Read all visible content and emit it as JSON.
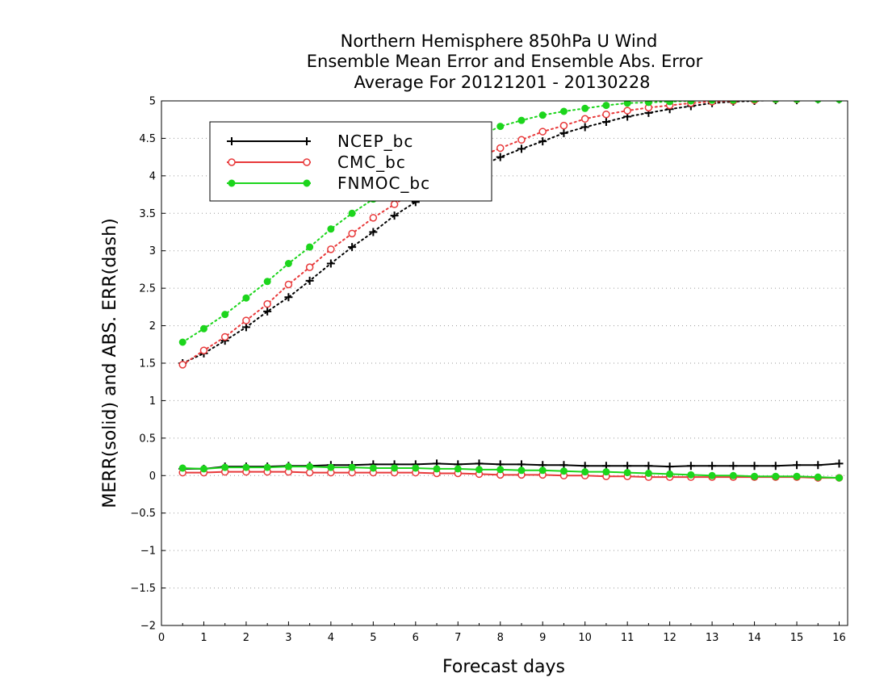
{
  "chart_data": {
    "type": "line",
    "title_lines": [
      "Northern Hemisphere 850hPa U Wind",
      "Ensemble Mean Error and Ensemble Abs. Error",
      "Average For 20121201 - 20130228"
    ],
    "xlabel": "Forecast days",
    "ylabel": "MERR(solid) and ABS. ERR(dash)",
    "xlim": [
      0,
      16.2
    ],
    "ylim": [
      -2,
      5
    ],
    "x_ticks": [
      "0",
      "1",
      "2",
      "3",
      "4",
      "5",
      "6",
      "7",
      "8",
      "9",
      "10",
      "11",
      "12",
      "13",
      "14",
      "15",
      "16"
    ],
    "y_ticks": [
      "−2",
      "−1.5",
      "−1",
      "−0.5",
      "0",
      "0.5",
      "1",
      "1.5",
      "2",
      "2.5",
      "3",
      "3.5",
      "4",
      "4.5",
      "5"
    ],
    "grid": "horizontal dotted",
    "legend_position": "top-left",
    "x": [
      0.5,
      1,
      1.5,
      2,
      2.5,
      3,
      3.5,
      4,
      4.5,
      5,
      5.5,
      6,
      6.5,
      7,
      7.5,
      8,
      8.5,
      9,
      9.5,
      10,
      10.5,
      11,
      11.5,
      12,
      12.5,
      13,
      13.5,
      14,
      14.5,
      15,
      15.5,
      16
    ],
    "series": [
      {
        "name": "NCEP_bc",
        "color": "#000000",
        "marker": "plus",
        "merr": [
          0.09,
          0.09,
          0.12,
          0.12,
          0.12,
          0.13,
          0.13,
          0.14,
          0.14,
          0.15,
          0.15,
          0.15,
          0.16,
          0.15,
          0.16,
          0.15,
          0.15,
          0.14,
          0.14,
          0.13,
          0.13,
          0.13,
          0.13,
          0.12,
          0.13,
          0.13,
          0.13,
          0.13,
          0.13,
          0.14,
          0.14,
          0.16
        ],
        "abs_err": [
          1.5,
          1.63,
          1.8,
          1.98,
          2.19,
          2.38,
          2.6,
          2.83,
          3.05,
          3.25,
          3.47,
          3.65,
          3.83,
          4.0,
          4.12,
          4.25,
          4.36,
          4.46,
          4.57,
          4.65,
          4.72,
          4.79,
          4.84,
          4.89,
          4.93,
          4.97,
          4.99,
          5.0,
          5.01,
          5.01,
          5.02,
          5.02
        ]
      },
      {
        "name": "CMC_bc",
        "color": "#e8393a",
        "marker": "circle-open",
        "merr": [
          0.04,
          0.04,
          0.05,
          0.05,
          0.05,
          0.05,
          0.04,
          0.04,
          0.04,
          0.04,
          0.04,
          0.04,
          0.03,
          0.03,
          0.02,
          0.01,
          0.01,
          0.01,
          0.0,
          0.0,
          -0.01,
          -0.01,
          -0.02,
          -0.02,
          -0.02,
          -0.02,
          -0.02,
          -0.02,
          -0.02,
          -0.02,
          -0.03,
          -0.03
        ],
        "abs_err": [
          1.48,
          1.67,
          1.85,
          2.07,
          2.29,
          2.55,
          2.78,
          3.02,
          3.23,
          3.44,
          3.62,
          3.8,
          3.98,
          4.12,
          4.25,
          4.37,
          4.48,
          4.59,
          4.67,
          4.76,
          4.82,
          4.87,
          4.91,
          4.94,
          4.97,
          4.99,
          5.0,
          5.01,
          5.02,
          5.02,
          5.03,
          5.03
        ]
      },
      {
        "name": "FNMOC_bc",
        "color": "#1cd51c",
        "marker": "circle-filled",
        "merr": [
          0.1,
          0.09,
          0.11,
          0.11,
          0.11,
          0.12,
          0.12,
          0.11,
          0.11,
          0.1,
          0.1,
          0.1,
          0.09,
          0.09,
          0.08,
          0.08,
          0.07,
          0.07,
          0.06,
          0.05,
          0.05,
          0.04,
          0.03,
          0.02,
          0.01,
          0.0,
          0.0,
          -0.01,
          -0.01,
          -0.01,
          -0.02,
          -0.03
        ],
        "abs_err": [
          1.78,
          1.96,
          2.15,
          2.37,
          2.59,
          2.83,
          3.05,
          3.29,
          3.5,
          3.69,
          3.88,
          4.06,
          4.24,
          4.4,
          4.53,
          4.66,
          4.74,
          4.81,
          4.86,
          4.9,
          4.94,
          4.97,
          4.98,
          4.99,
          5.0,
          5.01,
          5.01,
          5.02,
          5.02,
          5.02,
          5.02,
          5.02
        ]
      }
    ]
  }
}
